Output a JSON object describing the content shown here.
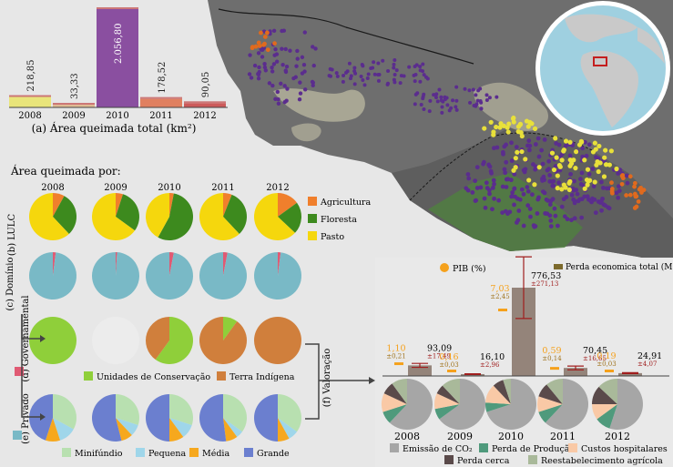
{
  "colors": {
    "map_land": "#6f6f6f",
    "map_veg": "#b9b7a1",
    "map_green": "#5f8f4b",
    "fire_purple": "#5b2d8e",
    "fire_yellow": "#e8e03a",
    "fire_orange": "#e06a1e",
    "agric": "#f07f2c",
    "floresta": "#3d8a1e",
    "pasto": "#f5d70d",
    "dominio": "#79b9c6",
    "dominio_slice": "#e05a73",
    "uc": "#8fcf3a",
    "ti": "#d07f3c",
    "minifundio": "#b8e0b0",
    "pequena": "#9fd6ea",
    "media": "#f6a81e",
    "grande": "#6b7fcf",
    "co2": "#a6a6a6",
    "producao": "#4f9a7c",
    "hospitalar": "#f9c9a6",
    "cerca": "#5a4a4a",
    "agricola": "#a9b99a",
    "pib": "#f5a11c",
    "perda": "#7c6a2c",
    "valor_bar": "#94847a"
  },
  "bar_chart": {
    "caption": "(a) Área queimada total (km²)",
    "categories": [
      "2008",
      "2009",
      "2010",
      "2011",
      "2012"
    ],
    "values": [
      218.85,
      33.33,
      2056.8,
      178.52,
      90.05
    ],
    "labels": [
      "218,85",
      "33,33",
      "2.056,80",
      "178,52",
      "90,05"
    ],
    "colors": [
      "#e9e57a",
      "#e0bc94",
      "#8a4fa0",
      "#e08060",
      "#cc5a5a"
    ]
  },
  "chart_data": {
    "type": "bar",
    "categories": [
      "2008",
      "2009",
      "2010",
      "2011",
      "2012"
    ],
    "values": [
      218.85,
      33.33,
      2056.8,
      178.52,
      90.05
    ],
    "title": "(a) Área queimada total (km²)",
    "xlabel": "",
    "ylabel": "",
    "ylim": [
      0,
      2100
    ]
  },
  "pies": {
    "title": "Área queimada por:",
    "years": [
      "2008",
      "2009",
      "2010",
      "2011",
      "2012"
    ],
    "lulc": {
      "label": "(b) LULC",
      "legend": [
        "Agricultura",
        "Floresta",
        "Pasto"
      ],
      "rows": [
        [
          8,
          30,
          62
        ],
        [
          5,
          30,
          65
        ],
        [
          3,
          55,
          42
        ],
        [
          6,
          32,
          62
        ],
        [
          15,
          22,
          63
        ]
      ]
    },
    "dominio": {
      "label": "(c) Domínio",
      "rows": [
        [
          2,
          98
        ],
        [
          1,
          99
        ],
        [
          3,
          97
        ],
        [
          3,
          97
        ],
        [
          2,
          98
        ]
      ]
    },
    "governamental": {
      "label": "(d) Governamental",
      "legend": [
        "Unidades de Conservação",
        "Terra Indígena"
      ],
      "rows": [
        [
          100,
          0
        ],
        [
          0,
          0
        ],
        [
          60,
          40
        ],
        [
          10,
          90
        ],
        [
          0,
          100
        ]
      ]
    },
    "privado": {
      "label": "(e) Privado",
      "legend": [
        "Minifúndio",
        "Pequena",
        "Média",
        "Grande"
      ],
      "rows": [
        [
          33,
          12,
          10,
          45
        ],
        [
          30,
          8,
          8,
          54
        ],
        [
          30,
          10,
          10,
          50
        ],
        [
          35,
          5,
          8,
          52
        ],
        [
          35,
          7,
          8,
          50
        ]
      ]
    }
  },
  "valoracao": {
    "label": "(f) Valoração",
    "legend_pib": "PIB (%)",
    "legend_perda": "Perda economica total (M R$)",
    "years": [
      "2008",
      "2009",
      "2010",
      "2011",
      "2012"
    ],
    "perda_values": [
      93.09,
      16.1,
      776.53,
      70.45,
      24.91
    ],
    "perda_labels": [
      "93,09",
      "16,10",
      "776,53",
      "70,45",
      "24,91"
    ],
    "perda_err_labels": [
      "±17,49",
      "±2,96",
      "±271,13",
      "±16,65",
      "±4,07"
    ],
    "perda_err_values": [
      17.49,
      2.96,
      271.13,
      16.65,
      4.07
    ],
    "pib_values": [
      1.1,
      0.16,
      7.03,
      0.59,
      0.19
    ],
    "pib_labels": [
      "1,10",
      "0,16",
      "7,03",
      "0,59",
      "0,19"
    ],
    "pib_err_labels": [
      "±0,21",
      "±0,03",
      "±2,45",
      "±0,14",
      "±0,03"
    ],
    "pies": [
      [
        62,
        8,
        12,
        8,
        10
      ],
      [
        65,
        7,
        10,
        6,
        12
      ],
      [
        70,
        6,
        12,
        7,
        5
      ],
      [
        62,
        8,
        10,
        9,
        11
      ],
      [
        55,
        10,
        10,
        12,
        13
      ]
    ],
    "legend": [
      "Emissão de CO₂",
      "Perda de Produção",
      "Custos hospitalares",
      "Perda cerca",
      "Reestabelecimento agrícola"
    ]
  }
}
